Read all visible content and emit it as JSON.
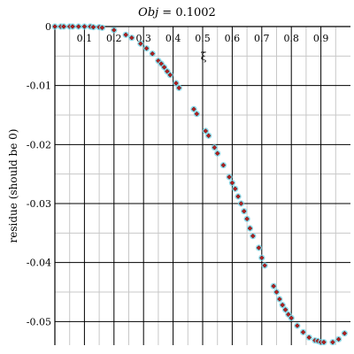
{
  "chart_data": {
    "type": "scatter",
    "title_italic": "Obj",
    "title_rest": " = 0.1002",
    "xlabel": "ξ",
    "ylabel": "residue (should be 0)",
    "xlim": [
      0,
      1.0
    ],
    "ylim": [
      -0.054,
      0
    ],
    "x_ticks": [
      0.1,
      0.2,
      0.3,
      0.4,
      0.5,
      0.6,
      0.7,
      0.8,
      0.9
    ],
    "x_tick_labels": [
      "0.1",
      "0.2",
      "0.3",
      "0.4",
      "0.5",
      "0.6",
      "0.7",
      "0.8",
      "0.9"
    ],
    "y_ticks": [
      0,
      -0.01,
      -0.02,
      -0.03,
      -0.04,
      -0.05
    ],
    "y_tick_labels": [
      "0",
      "-0.01",
      "-0.02",
      "-0.03",
      "-0.04",
      "-0.05"
    ],
    "grid": true,
    "colors": {
      "markers": "#b22222",
      "halo": "#7fd6e6",
      "grid_major": "#000000",
      "grid_minor": "#c8c8c8"
    },
    "series": [
      {
        "points": [
          [
            0.0,
            0.0
          ],
          [
            0.02,
            0.0
          ],
          [
            0.03,
            0.0
          ],
          [
            0.05,
            0.0
          ],
          [
            0.06,
            0.0
          ],
          [
            0.08,
            0.0
          ],
          [
            0.1,
            0.0
          ],
          [
            0.12,
            0.0
          ],
          [
            0.13,
            -0.0001
          ],
          [
            0.15,
            -0.0001
          ],
          [
            0.16,
            -0.0002
          ],
          [
            0.2,
            -0.0006
          ],
          [
            0.24,
            -0.0014
          ],
          [
            0.26,
            -0.0019
          ],
          [
            0.29,
            -0.0029
          ],
          [
            0.31,
            -0.0037
          ],
          [
            0.33,
            -0.0046
          ],
          [
            0.35,
            -0.0058
          ],
          [
            0.36,
            -0.0063
          ],
          [
            0.37,
            -0.0069
          ],
          [
            0.38,
            -0.0076
          ],
          [
            0.39,
            -0.0082
          ],
          [
            0.41,
            -0.0096
          ],
          [
            0.42,
            -0.0104
          ],
          [
            0.47,
            -0.014
          ],
          [
            0.48,
            -0.0148
          ],
          [
            0.51,
            -0.0177
          ],
          [
            0.52,
            -0.0185
          ],
          [
            0.54,
            -0.0205
          ],
          [
            0.55,
            -0.0215
          ],
          [
            0.57,
            -0.0235
          ],
          [
            0.59,
            -0.0255
          ],
          [
            0.6,
            -0.0265
          ],
          [
            0.61,
            -0.0275
          ],
          [
            0.62,
            -0.0288
          ],
          [
            0.63,
            -0.03
          ],
          [
            0.64,
            -0.0313
          ],
          [
            0.65,
            -0.0326
          ],
          [
            0.66,
            -0.0342
          ],
          [
            0.67,
            -0.0355
          ],
          [
            0.69,
            -0.0375
          ],
          [
            0.7,
            -0.0392
          ],
          [
            0.71,
            -0.0405
          ],
          [
            0.74,
            -0.044
          ],
          [
            0.75,
            -0.045
          ],
          [
            0.76,
            -0.0462
          ],
          [
            0.77,
            -0.0472
          ],
          [
            0.78,
            -0.048
          ],
          [
            0.79,
            -0.0488
          ],
          [
            0.8,
            -0.0494
          ],
          [
            0.82,
            -0.0507
          ],
          [
            0.84,
            -0.0518
          ],
          [
            0.86,
            -0.0527
          ],
          [
            0.88,
            -0.0532
          ],
          [
            0.89,
            -0.0533
          ],
          [
            0.9,
            -0.0535
          ],
          [
            0.91,
            -0.0535
          ],
          [
            0.94,
            -0.0535
          ],
          [
            0.96,
            -0.053
          ],
          [
            0.98,
            -0.052
          ]
        ]
      }
    ]
  }
}
